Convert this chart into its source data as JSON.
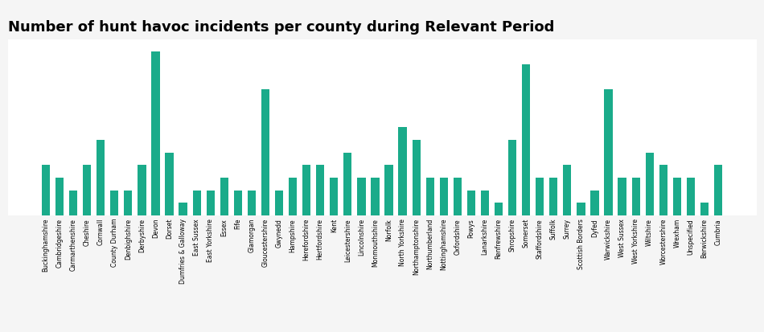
{
  "title": "Number of hunt havoc incidents per county during Relevant Period",
  "bar_color": "#1aab8a",
  "categories": [
    "Buckinghamshire",
    "Cambridgeshire",
    "Carmarthenshire",
    "Cheshire",
    "Cornwall",
    "County Durham",
    "Denbighshire",
    "Derbyshire",
    "Devon",
    "Dorset",
    "Dumfries & Galloway",
    "East Sussex",
    "East Yorkshire",
    "Essex",
    "Fife",
    "Glamorgan",
    "Gloucestershire",
    "Gwynedd",
    "Hampshire",
    "Herefordshire",
    "Hertfordshire",
    "Kent",
    "Leicestershire",
    "Lincolnshire",
    "Monmouthshire",
    "Norfolk",
    "North Yorkshire",
    "Northamptonshire",
    "Northumberland",
    "Nottinghamshire",
    "Oxfordshire",
    "Powys",
    "Lanarkshire",
    "Renfrewshire",
    "Shropshire",
    "Somerset",
    "Staffordshire",
    "Suffolk",
    "Surrey",
    "Scottish Borders",
    "Dyfed",
    "Warwickshire",
    "West Sussex",
    "West Yorkshire",
    "Wiltshire",
    "Worcestershire",
    "Wrexham",
    "Unspecified",
    "Berwickshire",
    "Cumbria"
  ],
  "values": [
    4,
    3,
    2,
    4,
    6,
    2,
    2,
    4,
    13,
    5,
    1,
    2,
    2,
    3,
    2,
    2,
    10,
    2,
    3,
    4,
    4,
    3,
    5,
    3,
    3,
    4,
    7,
    6,
    3,
    3,
    3,
    2,
    2,
    1,
    6,
    12,
    3,
    3,
    4,
    1,
    2,
    10,
    3,
    3,
    5,
    4,
    3,
    3,
    1,
    4
  ],
  "ylim": [
    0,
    14
  ],
  "ytick_interval": 2,
  "background_color": "#f5f5f5",
  "plot_background": "#ffffff",
  "title_fontsize": 13,
  "tick_fontsize": 5.5,
  "grid_color": "#aaaaaa",
  "grid_linewidth": 0.8
}
